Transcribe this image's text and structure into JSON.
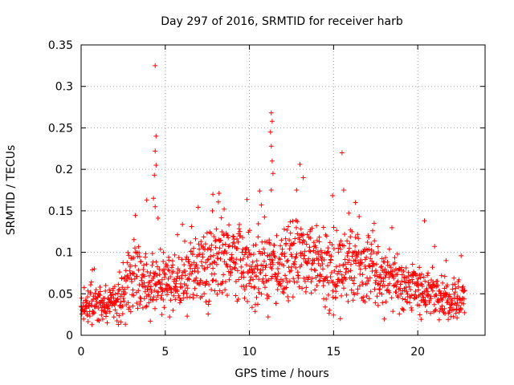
{
  "chart_data": {
    "type": "scatter",
    "title": "Day 297 of 2016, SRMTID for receiver harb",
    "xlabel": "GPS time / hours",
    "ylabel": "SRMTID / TECUs",
    "xlim": [
      0,
      24
    ],
    "ylim": [
      0,
      0.35
    ],
    "xticks": [
      0,
      5,
      10,
      15,
      20
    ],
    "yticks": [
      0,
      0.05,
      0.1,
      0.15,
      0.2,
      0.25,
      0.3,
      0.35
    ],
    "xtick_labels": [
      "0",
      "5",
      "10",
      "15",
      "20"
    ],
    "ytick_labels": [
      "0",
      "0.05",
      "0.1",
      "0.15",
      "0.2",
      "0.25",
      "0.3",
      "0.35"
    ],
    "grid": true,
    "marker": "+",
    "color": "#ff0000",
    "x_extent_hours": [
      0,
      22.8
    ],
    "baseline_profile": [
      [
        0.0,
        0.035
      ],
      [
        1.0,
        0.035
      ],
      [
        2.0,
        0.038
      ],
      [
        2.8,
        0.06
      ],
      [
        3.3,
        0.08
      ],
      [
        3.6,
        0.055
      ],
      [
        4.0,
        0.06
      ],
      [
        4.5,
        0.065
      ],
      [
        5.0,
        0.06
      ],
      [
        6.0,
        0.07
      ],
      [
        7.0,
        0.08
      ],
      [
        8.0,
        0.09
      ],
      [
        9.0,
        0.09
      ],
      [
        10.0,
        0.08
      ],
      [
        11.0,
        0.085
      ],
      [
        12.0,
        0.08
      ],
      [
        13.0,
        0.09
      ],
      [
        14.0,
        0.085
      ],
      [
        15.0,
        0.075
      ],
      [
        16.0,
        0.09
      ],
      [
        17.0,
        0.08
      ],
      [
        18.0,
        0.07
      ],
      [
        19.0,
        0.06
      ],
      [
        20.0,
        0.055
      ],
      [
        21.0,
        0.05
      ],
      [
        22.0,
        0.04
      ],
      [
        22.8,
        0.05
      ]
    ],
    "notable_points": [
      {
        "x": 4.4,
        "y": 0.325
      },
      {
        "x": 4.45,
        "y": 0.24
      },
      {
        "x": 4.4,
        "y": 0.222
      },
      {
        "x": 4.45,
        "y": 0.205
      },
      {
        "x": 4.35,
        "y": 0.193
      },
      {
        "x": 4.3,
        "y": 0.165
      },
      {
        "x": 3.9,
        "y": 0.163
      },
      {
        "x": 4.4,
        "y": 0.155
      },
      {
        "x": 11.3,
        "y": 0.268
      },
      {
        "x": 11.35,
        "y": 0.258
      },
      {
        "x": 11.25,
        "y": 0.245
      },
      {
        "x": 11.3,
        "y": 0.228
      },
      {
        "x": 11.35,
        "y": 0.21
      },
      {
        "x": 11.4,
        "y": 0.195
      },
      {
        "x": 11.3,
        "y": 0.175
      },
      {
        "x": 13.0,
        "y": 0.206
      },
      {
        "x": 13.2,
        "y": 0.19
      },
      {
        "x": 12.8,
        "y": 0.175
      },
      {
        "x": 15.5,
        "y": 0.22
      },
      {
        "x": 15.6,
        "y": 0.175
      },
      {
        "x": 16.3,
        "y": 0.16
      },
      {
        "x": 7.8,
        "y": 0.15
      },
      {
        "x": 8.5,
        "y": 0.152
      },
      {
        "x": 20.4,
        "y": 0.138
      },
      {
        "x": 15.4,
        "y": 0.02
      },
      {
        "x": 4.8,
        "y": 0.025
      }
    ]
  }
}
